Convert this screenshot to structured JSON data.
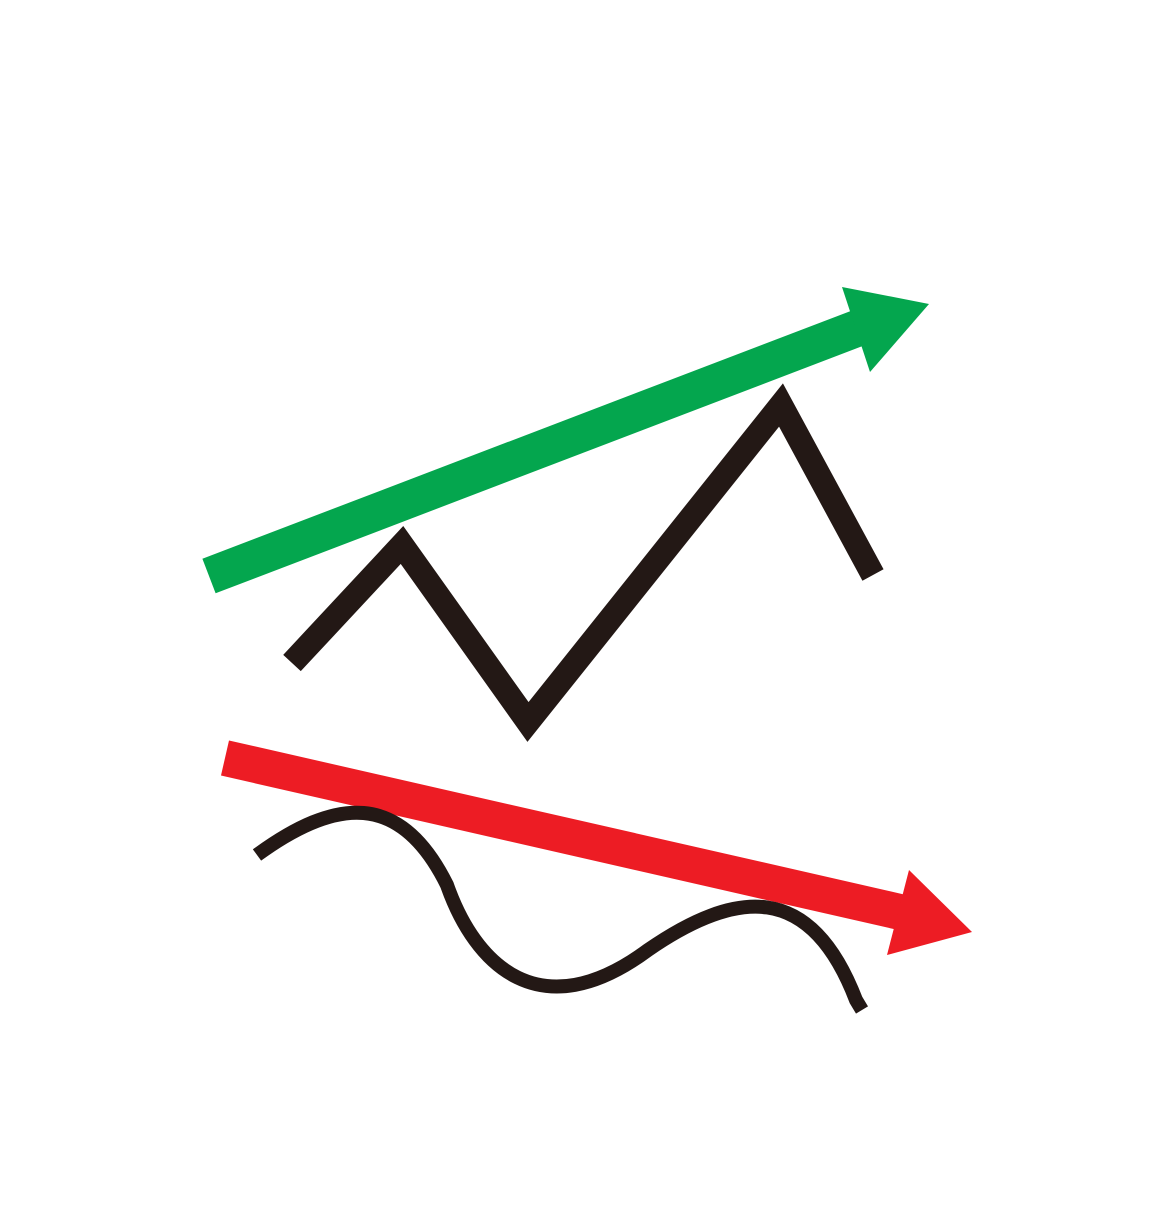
{
  "colors": {
    "background": "#ffffff",
    "uptrend_arrow": "#04a64e",
    "downtrend_arrow": "#ed1c24",
    "price_line": "#231815"
  },
  "icons": {
    "uptrend": "up-arrow-icon",
    "downtrend": "down-arrow-icon",
    "zigzag": "zigzag-line-icon",
    "wave": "wave-line-icon"
  }
}
